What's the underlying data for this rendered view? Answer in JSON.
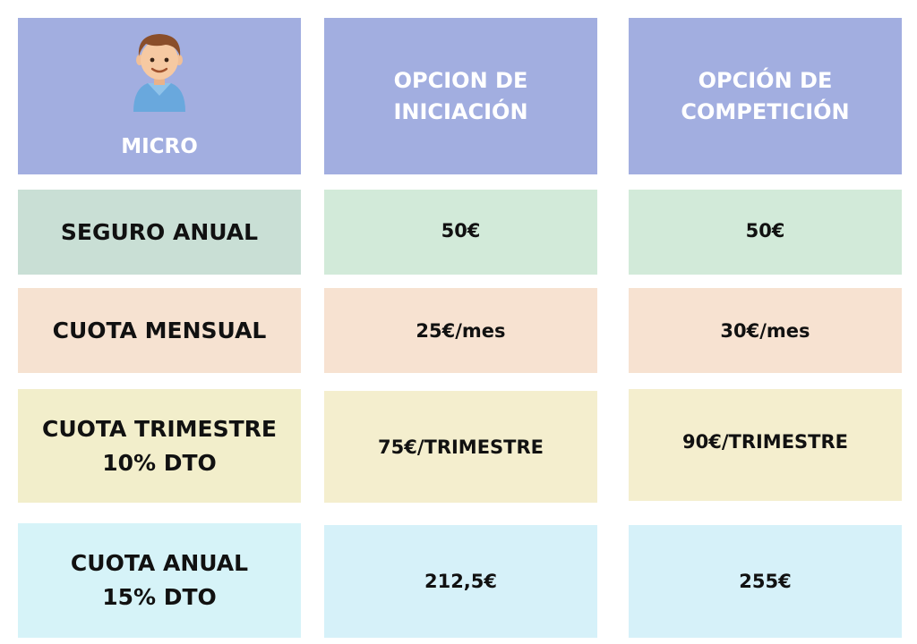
{
  "header": {
    "category": "MICRO",
    "icon": "child-avatar-icon",
    "options": [
      {
        "line1": "OPCION DE",
        "line2": "INICIACIÓN"
      },
      {
        "line1": "OPCIÓN DE",
        "line2": "COMPETICIÓN"
      }
    ]
  },
  "rows": [
    {
      "label_line1": "SEGURO ANUAL",
      "label_line2": "",
      "iniciacion": "50€",
      "competicion": "50€",
      "color": "#c9dfd5",
      "cell_color": "#d2ead9"
    },
    {
      "label_line1": "CUOTA MENSUAL",
      "label_line2": "",
      "iniciacion": "25€/mes",
      "competicion": "30€/mes",
      "color": "#f6e2d1",
      "cell_color": "#f7e2d1"
    },
    {
      "label_line1": "CUOTA TRIMESTRE",
      "label_line2": "10% DTO",
      "iniciacion": "75€/TRIMESTRE",
      "competicion": "90€/TRIMESTRE",
      "color": "#f2eecb",
      "cell_color": "#f4eece"
    },
    {
      "label_line1": "CUOTA ANUAL",
      "label_line2": "15% DTO",
      "iniciacion": "212,5€",
      "competicion": "255€",
      "color": "#d6f3f8",
      "cell_color": "#d6f1f9"
    }
  ],
  "colors": {
    "header": "#a2aee0",
    "header_text": "#ffffff",
    "text": "#111111"
  }
}
